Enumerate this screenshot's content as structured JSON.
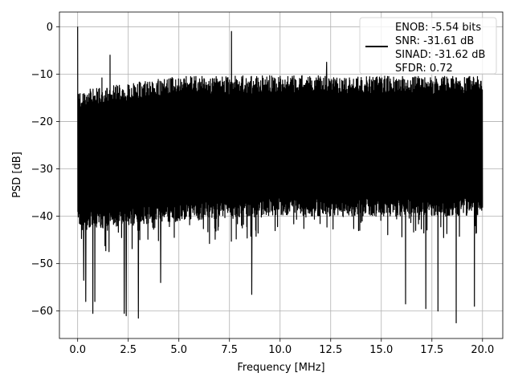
{
  "chart_data": {
    "type": "line",
    "title": "",
    "xlabel": "Frequency [MHz]",
    "ylabel": "PSD [dB]",
    "xlim": [
      -0.9,
      21.0
    ],
    "ylim": [
      -65.8,
      3.1
    ],
    "xticks": [
      0.0,
      2.5,
      5.0,
      7.5,
      10.0,
      12.5,
      15.0,
      17.5,
      20.0
    ],
    "xtick_labels": [
      "0.0",
      "2.5",
      "5.0",
      "7.5",
      "10.0",
      "12.5",
      "15.0",
      "17.5",
      "20.0"
    ],
    "yticks": [
      0,
      -10,
      -20,
      -30,
      -40,
      -50,
      -60
    ],
    "ytick_labels": [
      "0",
      "−10",
      "−20",
      "−30",
      "−40",
      "−50",
      "−60"
    ],
    "grid": true,
    "legend_position": "top-right",
    "color": "#000000",
    "series": [
      {
        "name": "ENOB: -5.54 bits\nSNR: -31.61 dB\nSINAD: -31.62 dB\nSFDR: 0.72",
        "x_start": 0.0,
        "x_end": 20.0,
        "num_points": 2000,
        "envelope_top": [
          [
            0.0,
            -13.5
          ],
          [
            5.0,
            -10.5
          ],
          [
            10.0,
            -10.3
          ],
          [
            15.0,
            -10.4
          ],
          [
            20.0,
            -10.5
          ]
        ],
        "envelope_bottom": [
          [
            0.0,
            -43.0
          ],
          [
            5.0,
            -41.0
          ],
          [
            10.0,
            -40.0
          ],
          [
            15.0,
            -40.0
          ],
          [
            20.0,
            -40.0
          ]
        ],
        "peaks": [
          {
            "x": 0.0,
            "y": 0.0
          },
          {
            "x": 0.05,
            "y": -25.0
          },
          {
            "x": 1.2,
            "y": -10.8
          },
          {
            "x": 1.6,
            "y": -6.0
          },
          {
            "x": 7.6,
            "y": -1.0
          },
          {
            "x": 12.3,
            "y": -7.5
          }
        ],
        "troughs": [
          {
            "x": 0.3,
            "y": -53.5
          },
          {
            "x": 0.4,
            "y": -58.0
          },
          {
            "x": 0.75,
            "y": -60.5
          },
          {
            "x": 0.85,
            "y": -58.0
          },
          {
            "x": 2.3,
            "y": -60.5
          },
          {
            "x": 2.4,
            "y": -61.0
          },
          {
            "x": 3.0,
            "y": -61.5
          },
          {
            "x": 4.1,
            "y": -54.0
          },
          {
            "x": 8.6,
            "y": -56.5
          },
          {
            "x": 16.2,
            "y": -58.5
          },
          {
            "x": 17.2,
            "y": -59.5
          },
          {
            "x": 17.8,
            "y": -60.0
          },
          {
            "x": 18.7,
            "y": -62.5
          },
          {
            "x": 19.6,
            "y": -59.0
          }
        ]
      }
    ]
  }
}
